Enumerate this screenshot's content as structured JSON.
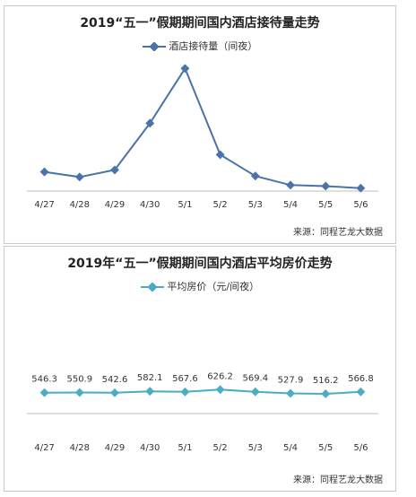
{
  "charts": [
    {
      "title": "2019“五一”假期期间国内酒店接待量走势",
      "legend": "酒店接待量（间夜）",
      "source": "来源：同程艺龙大数据",
      "color": "#4a73a8"
    },
    {
      "title": "2019年“五一”假期期间国内酒店平均房价走势",
      "legend": "平均房价（元/间夜）",
      "source": "来源：同程艺龙大数据",
      "color": "#4bacc6"
    }
  ],
  "chart_data": [
    {
      "type": "line",
      "title": "2019“五一”假期期间国内酒店接待量走势",
      "categories": [
        "4/27",
        "4/28",
        "4/29",
        "4/30",
        "5/1",
        "5/2",
        "5/3",
        "5/4",
        "5/5",
        "5/6"
      ],
      "series": [
        {
          "name": "酒店接待量（间夜）",
          "values": [
            18,
            13,
            20,
            66,
            120,
            35,
            14,
            5,
            4,
            2
          ]
        }
      ],
      "ylim": [
        0,
        130
      ],
      "y_axis_visible": false,
      "data_labels": false,
      "grid": false
    },
    {
      "type": "line",
      "title": "2019年“五一”假期期间国内酒店平均房价走势",
      "categories": [
        "4/27",
        "4/28",
        "4/29",
        "4/30",
        "5/1",
        "5/2",
        "5/3",
        "5/4",
        "5/5",
        "5/6"
      ],
      "series": [
        {
          "name": "平均房价（元/间夜）",
          "values": [
            546.3,
            550.9,
            542.6,
            582.1,
            567.6,
            626.2,
            569.4,
            527.9,
            516.2,
            566.8
          ]
        }
      ],
      "ylim": [
        0,
        3000
      ],
      "y_axis_visible": false,
      "data_labels": true,
      "grid": false
    }
  ]
}
